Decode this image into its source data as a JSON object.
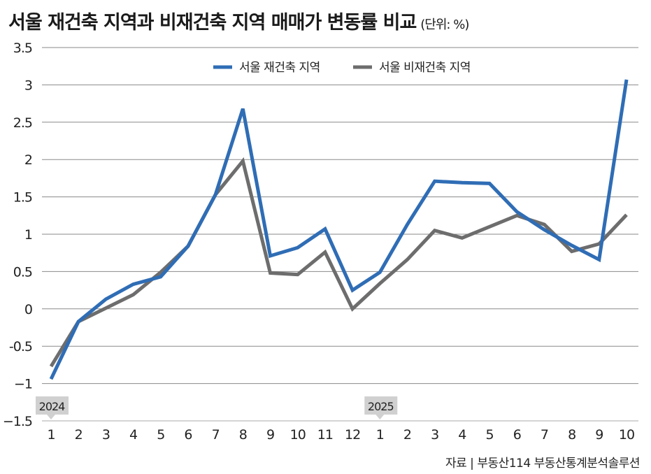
{
  "chart_data": {
    "type": "line",
    "title": "서울 재건축 지역과 비재건축 지역 매매가 변동률 비교",
    "unit_label": "(단위: %)",
    "categories": [
      "1",
      "2",
      "3",
      "4",
      "5",
      "6",
      "7",
      "8",
      "9",
      "10",
      "11",
      "12",
      "1",
      "2",
      "3",
      "4",
      "5",
      "6",
      "7",
      "8",
      "9",
      "10"
    ],
    "year_markers": [
      {
        "label": "2024",
        "index": 0
      },
      {
        "label": "2025",
        "index": 12
      }
    ],
    "ylim": [
      -1.5,
      3.5
    ],
    "yticks": [
      3.5,
      3,
      2.5,
      2,
      1.5,
      1,
      0.5,
      0,
      -0.5,
      -1,
      -1.5
    ],
    "ytick_labels": [
      "3.5",
      "3",
      "2.5",
      "2",
      "1.5",
      "1",
      "0.5",
      "0",
      "-0.5",
      "−1",
      "−1.5"
    ],
    "grid": true,
    "legend_placement": "top-center",
    "series": [
      {
        "name": "서울 재건축 지역",
        "color": "#2f6db5",
        "values": [
          -0.94,
          -0.17,
          0.13,
          0.33,
          0.43,
          0.84,
          1.53,
          2.68,
          0.71,
          0.82,
          1.07,
          0.25,
          0.49,
          1.13,
          1.71,
          1.69,
          1.68,
          1.3,
          1.06,
          0.85,
          0.66,
          3.07
        ]
      },
      {
        "name": "서울 비재건축 지역",
        "color": "#6d6d6d",
        "values": [
          -0.77,
          -0.17,
          0.01,
          0.19,
          0.49,
          0.84,
          1.53,
          1.98,
          0.48,
          0.46,
          0.76,
          0.0,
          0.34,
          0.66,
          1.05,
          0.95,
          1.1,
          1.25,
          1.13,
          0.77,
          0.87,
          1.26
        ]
      }
    ],
    "source": "자료 | 부동산114 부동산통계분석솔루션"
  }
}
